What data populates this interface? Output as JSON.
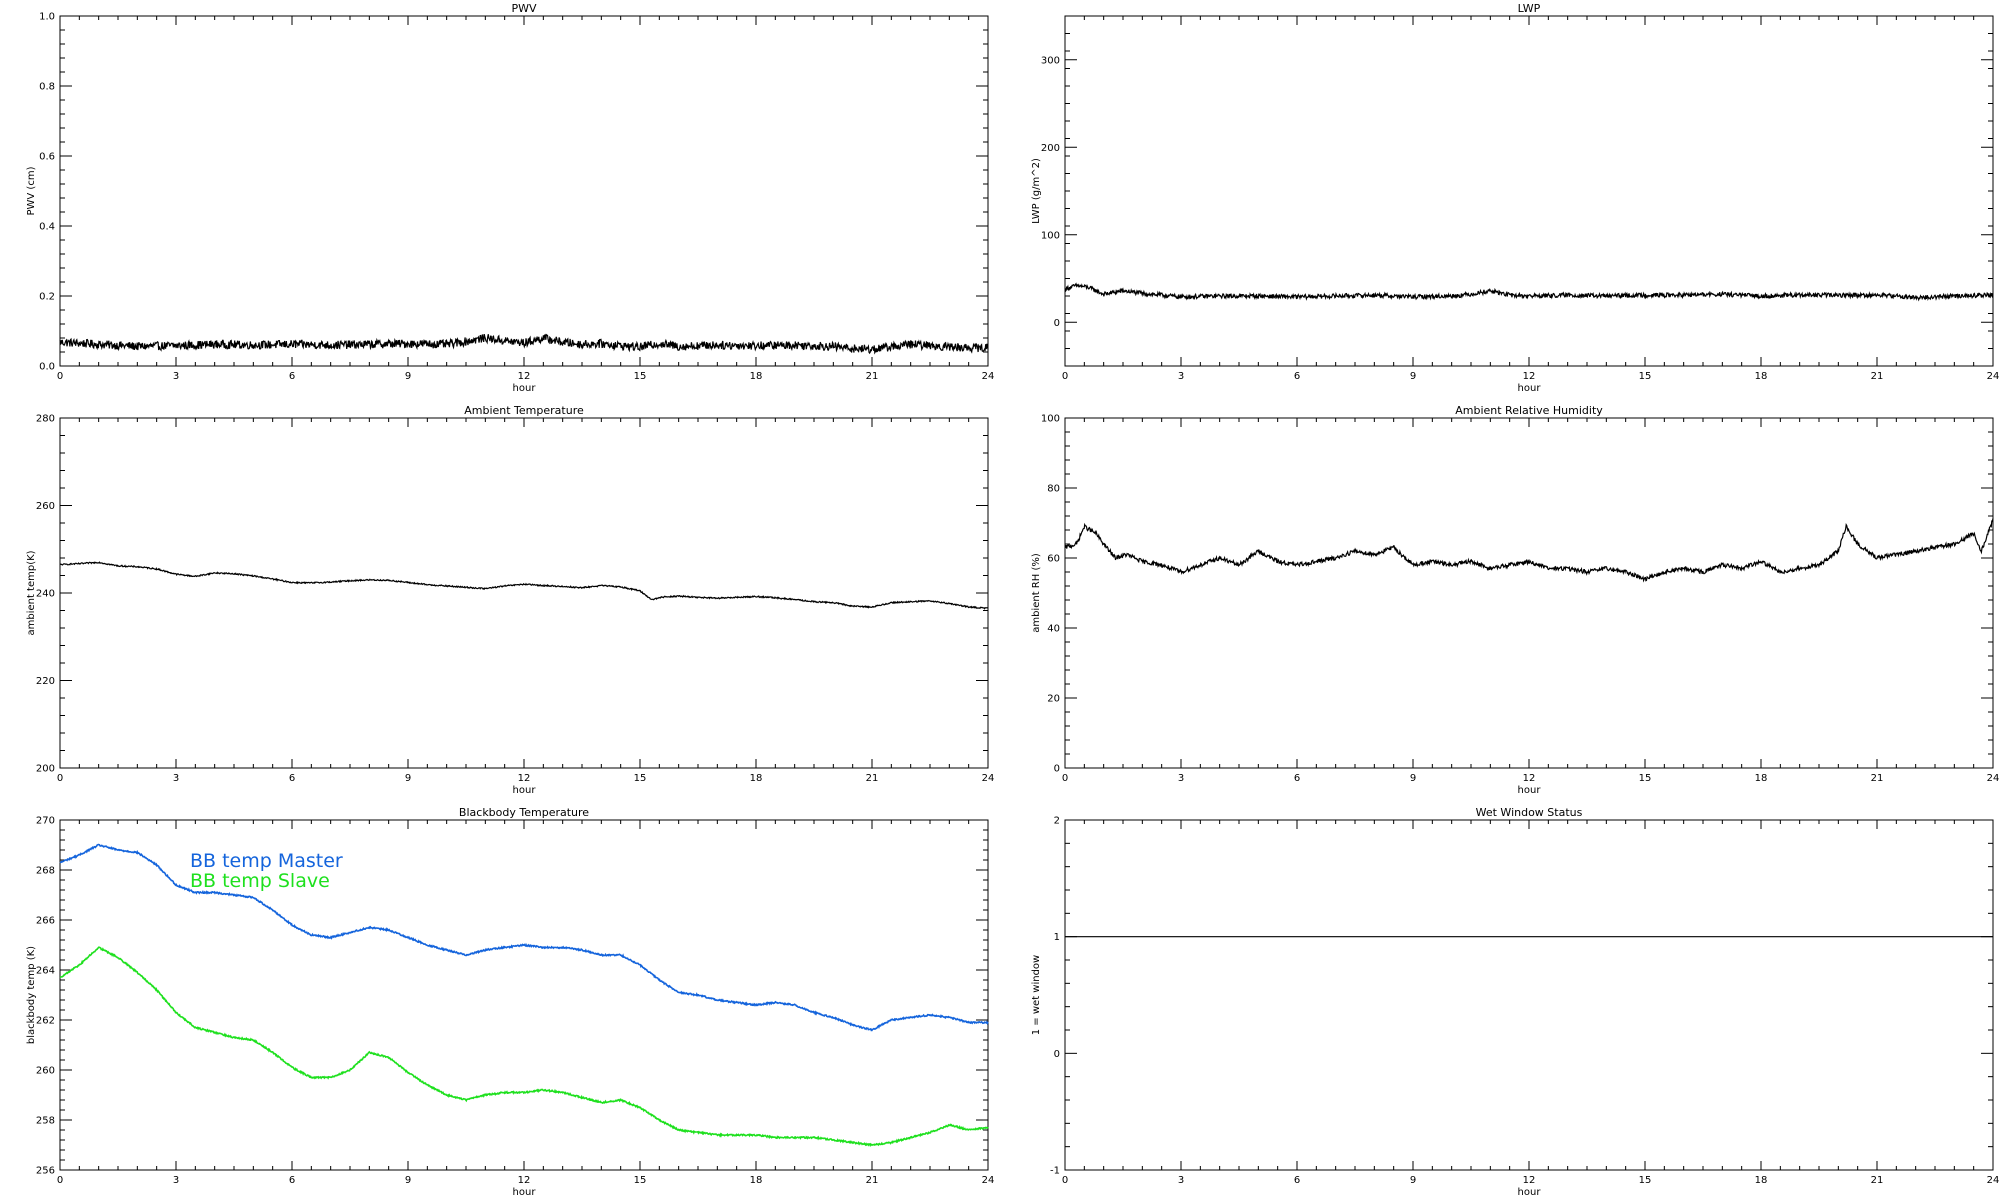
{
  "chart_data": [
    {
      "type": "line",
      "title": "PWV",
      "xlabel": "hour",
      "ylabel": "PWV (cm)",
      "xlim": [
        0,
        24
      ],
      "ylim": [
        0,
        1.0
      ],
      "xticks": [
        "0",
        "3",
        "6",
        "9",
        "12",
        "15",
        "18",
        "21",
        "24"
      ],
      "yticks": [
        "0.0",
        "0.2",
        "0.4",
        "0.6",
        "0.8",
        "1.0"
      ],
      "noise": 0.012,
      "series": [
        {
          "color": "#000000",
          "x": [
            0,
            1,
            2,
            3,
            4,
            5,
            6,
            7,
            8,
            9,
            10,
            10.5,
            11,
            11.5,
            12,
            12.5,
            13,
            13.5,
            14,
            14.5,
            15,
            15.5,
            16,
            17,
            18,
            19,
            20,
            20.5,
            21,
            21.5,
            22,
            22.5,
            23,
            23.5,
            24
          ],
          "y": [
            0.068,
            0.062,
            0.056,
            0.058,
            0.062,
            0.06,
            0.062,
            0.06,
            0.062,
            0.064,
            0.062,
            0.07,
            0.08,
            0.072,
            0.066,
            0.08,
            0.068,
            0.062,
            0.064,
            0.058,
            0.054,
            0.064,
            0.056,
            0.06,
            0.058,
            0.06,
            0.056,
            0.05,
            0.048,
            0.055,
            0.062,
            0.058,
            0.055,
            0.052,
            0.052
          ]
        }
      ]
    },
    {
      "type": "line",
      "title": "LWP",
      "xlabel": "hour",
      "ylabel": "LWP (g/m^2)",
      "xlim": [
        0,
        24
      ],
      "ylim": [
        -50,
        350
      ],
      "xticks": [
        "0",
        "3",
        "6",
        "9",
        "12",
        "15",
        "18",
        "21",
        "24"
      ],
      "yticks": [
        "0",
        "100",
        "200",
        "300"
      ],
      "noise": 2.5,
      "series": [
        {
          "color": "#000000",
          "x": [
            0,
            0.3,
            0.6,
            1,
            1.5,
            2,
            2.5,
            3,
            4,
            5,
            6,
            7,
            8,
            9,
            10,
            10.5,
            11,
            11.5,
            12,
            13,
            14,
            15,
            16,
            17,
            18,
            19,
            20,
            21,
            21.5,
            22,
            23,
            24
          ],
          "y": [
            38,
            42,
            40,
            32,
            36,
            33,
            31,
            29,
            30,
            30,
            29,
            30,
            31,
            29,
            30,
            32,
            36,
            31,
            30,
            31,
            30,
            31,
            31,
            32,
            30,
            31,
            31,
            31,
            30,
            28,
            30,
            31
          ]
        }
      ]
    },
    {
      "type": "line",
      "title": "Ambient Temperature",
      "xlabel": "hour",
      "ylabel": "ambient temp(K)",
      "xlim": [
        0,
        24
      ],
      "ylim": [
        200,
        280
      ],
      "xticks": [
        "0",
        "3",
        "6",
        "9",
        "12",
        "15",
        "18",
        "21",
        "24"
      ],
      "yticks": [
        "200",
        "220",
        "240",
        "260",
        "280"
      ],
      "noise": 0.15,
      "series": [
        {
          "color": "#000000",
          "x": [
            0,
            0.5,
            1,
            1.5,
            2,
            2.5,
            3,
            3.5,
            4,
            4.5,
            5,
            5.5,
            6,
            6.5,
            7,
            7.5,
            8,
            8.5,
            9,
            9.5,
            10,
            10.5,
            11,
            11.5,
            12,
            12.5,
            13,
            13.5,
            14,
            14.5,
            15,
            15.3,
            15.6,
            16,
            16.5,
            17,
            17.5,
            18,
            18.5,
            19,
            19.5,
            20,
            20.5,
            21,
            21.5,
            22,
            22.5,
            23,
            23.5,
            24
          ],
          "y": [
            246.5,
            246.7,
            247.0,
            246.2,
            246.0,
            245.5,
            244.3,
            243.8,
            244.6,
            244.4,
            243.9,
            243.2,
            242.4,
            242.3,
            242.5,
            242.8,
            243.0,
            242.9,
            242.4,
            241.9,
            241.6,
            241.3,
            241.0,
            241.6,
            242.0,
            241.7,
            241.5,
            241.2,
            241.7,
            241.4,
            240.5,
            238.5,
            239.1,
            239.3,
            239.0,
            238.8,
            239.0,
            239.2,
            238.9,
            238.5,
            238.0,
            237.8,
            237.0,
            236.8,
            237.8,
            238.0,
            238.2,
            237.6,
            236.8,
            236.5
          ]
        }
      ]
    },
    {
      "type": "line",
      "title": "Ambient Relative Humidity",
      "xlabel": "hour",
      "ylabel": "ambient RH (%)",
      "xlim": [
        0,
        24
      ],
      "ylim": [
        0,
        100
      ],
      "xticks": [
        "0",
        "3",
        "6",
        "9",
        "12",
        "15",
        "18",
        "21",
        "24"
      ],
      "yticks": [
        "0",
        "20",
        "40",
        "60",
        "80",
        "100"
      ],
      "noise": 0.6,
      "series": [
        {
          "color": "#000000",
          "x": [
            0,
            0.3,
            0.5,
            0.8,
            1,
            1.3,
            1.6,
            2,
            2.5,
            3,
            3.5,
            4,
            4.5,
            5,
            5.5,
            6,
            6.5,
            7,
            7.5,
            8,
            8.5,
            9,
            9.5,
            10,
            10.5,
            11,
            11.5,
            12,
            12.5,
            13,
            13.5,
            14,
            14.5,
            15,
            15.5,
            16,
            16.5,
            17,
            17.5,
            18,
            18.5,
            19,
            19.5,
            20,
            20.2,
            20.5,
            21,
            21.5,
            22,
            22.5,
            23,
            23.5,
            23.7,
            24
          ],
          "y": [
            63,
            64,
            69,
            67,
            64,
            60,
            61,
            59,
            58,
            56,
            58,
            60,
            58,
            62,
            59,
            58,
            59,
            60,
            62,
            61,
            63,
            58,
            59,
            58,
            59,
            57,
            58,
            59,
            57,
            57,
            56,
            57,
            56,
            54,
            56,
            57,
            56,
            58,
            57,
            59,
            56,
            57,
            58,
            62,
            69,
            64,
            60,
            61,
            62,
            63,
            64,
            67,
            62,
            71
          ]
        }
      ]
    },
    {
      "type": "line",
      "title": "Blackbody Temperature",
      "xlabel": "hour",
      "ylabel": "blackbody temp (K)",
      "xlim": [
        0,
        24
      ],
      "ylim": [
        256,
        270
      ],
      "xticks": [
        "0",
        "3",
        "6",
        "9",
        "12",
        "15",
        "18",
        "21",
        "24"
      ],
      "yticks": [
        "256",
        "258",
        "260",
        "262",
        "264",
        "266",
        "268",
        "270"
      ],
      "noise": 0.03,
      "legend": [
        "BB temp Master",
        "BB temp Slave"
      ],
      "series": [
        {
          "name": "BB temp Master",
          "color": "#1464dc",
          "x": [
            0,
            0.5,
            1,
            1.5,
            2,
            2.5,
            3,
            3.5,
            4,
            4.5,
            5,
            5.5,
            6,
            6.5,
            7,
            7.5,
            8,
            8.5,
            9,
            9.5,
            10,
            10.5,
            11,
            11.5,
            12,
            12.5,
            13,
            13.5,
            14,
            14.5,
            15,
            15.5,
            16,
            16.5,
            17,
            17.5,
            18,
            18.5,
            19,
            19.5,
            20,
            20.5,
            21,
            21.5,
            22,
            22.5,
            23,
            23.5,
            24
          ],
          "y": [
            268.3,
            268.6,
            269.0,
            268.8,
            268.7,
            268.2,
            267.4,
            267.1,
            267.1,
            267.0,
            266.9,
            266.4,
            265.8,
            265.4,
            265.3,
            265.5,
            265.7,
            265.6,
            265.3,
            265.0,
            264.8,
            264.6,
            264.8,
            264.9,
            265.0,
            264.9,
            264.9,
            264.8,
            264.6,
            264.6,
            264.2,
            263.6,
            263.1,
            263.0,
            262.8,
            262.7,
            262.6,
            262.7,
            262.6,
            262.3,
            262.1,
            261.8,
            261.6,
            262.0,
            262.1,
            262.2,
            262.1,
            261.9,
            261.9
          ]
        },
        {
          "name": "BB temp Slave",
          "color": "#1ee01e",
          "x": [
            0,
            0.5,
            1,
            1.5,
            2,
            2.5,
            3,
            3.5,
            4,
            4.5,
            5,
            5.5,
            6,
            6.5,
            7,
            7.5,
            8,
            8.5,
            9,
            9.5,
            10,
            10.5,
            11,
            11.5,
            12,
            12.5,
            13,
            13.5,
            14,
            14.5,
            15,
            15.5,
            16,
            16.5,
            17,
            17.5,
            18,
            18.5,
            19,
            19.5,
            20,
            20.5,
            21,
            21.5,
            22,
            22.5,
            23,
            23.5,
            24
          ],
          "y": [
            263.7,
            264.2,
            264.9,
            264.5,
            263.9,
            263.2,
            262.3,
            261.7,
            261.5,
            261.3,
            261.2,
            260.7,
            260.1,
            259.7,
            259.7,
            260.0,
            260.7,
            260.5,
            259.9,
            259.4,
            259.0,
            258.8,
            259.0,
            259.1,
            259.1,
            259.2,
            259.1,
            258.9,
            258.7,
            258.8,
            258.5,
            258.0,
            257.6,
            257.5,
            257.4,
            257.4,
            257.4,
            257.3,
            257.3,
            257.3,
            257.2,
            257.1,
            257.0,
            257.1,
            257.3,
            257.5,
            257.8,
            257.6,
            257.7
          ]
        }
      ]
    },
    {
      "type": "line",
      "title": "Wet Window Status",
      "xlabel": "hour",
      "ylabel": "1 = wet window",
      "xlim": [
        0,
        24
      ],
      "ylim": [
        -1,
        2
      ],
      "xticks": [
        "0",
        "3",
        "6",
        "9",
        "12",
        "15",
        "18",
        "21",
        "24"
      ],
      "yticks": [
        "-1",
        "0",
        "1",
        "2"
      ],
      "noise": 0,
      "series": [
        {
          "color": "#000000",
          "x": [
            0,
            24
          ],
          "y": [
            1,
            1
          ]
        }
      ]
    }
  ]
}
